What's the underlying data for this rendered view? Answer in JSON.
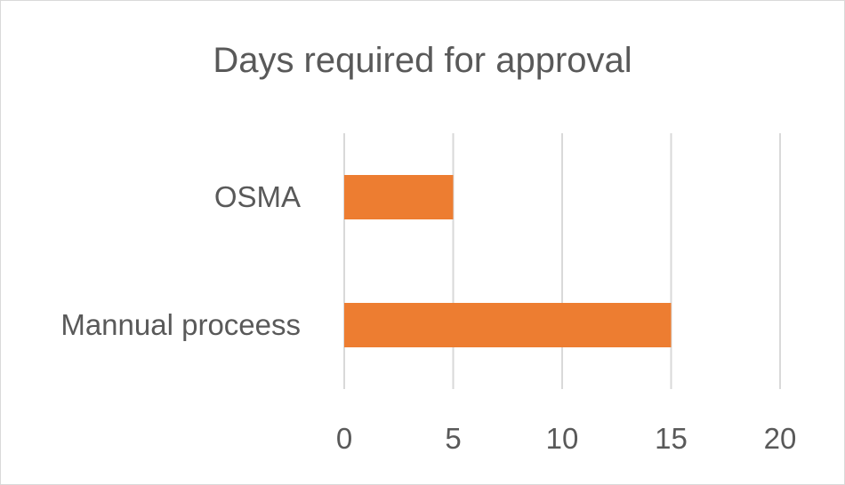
{
  "chart_data": {
    "type": "bar",
    "orientation": "horizontal",
    "title": "Days required for approval",
    "categories": [
      "OSMA",
      "Mannual proceess"
    ],
    "values": [
      5,
      15
    ],
    "xlim": [
      0,
      20
    ],
    "xticks": [
      0,
      5,
      10,
      15,
      20
    ],
    "grid": "vertical",
    "legend": "none",
    "colors": {
      "bar": "#ED7D31",
      "grid": "#D9D9D9",
      "text": "#595959"
    }
  }
}
